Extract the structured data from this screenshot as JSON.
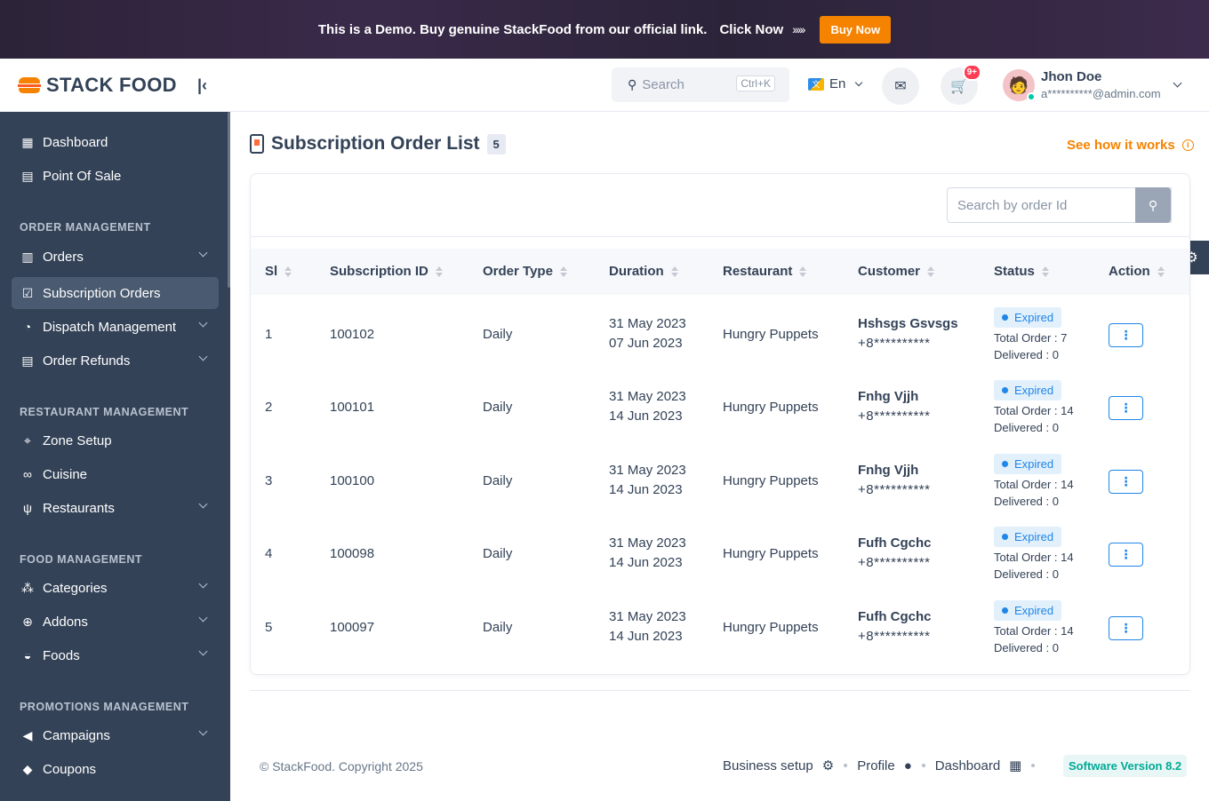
{
  "banner": {
    "text": "This is a Demo. Buy genuine StackFood from our official link.",
    "click_text": "Click Now",
    "arrows": "›››››",
    "buy_button": "Buy Now"
  },
  "brand": {
    "name": "STACK FOOD"
  },
  "sidebar": {
    "items": [
      {
        "label": "Dashboard",
        "icon": "dashboard-icon"
      },
      {
        "label": "Point Of Sale",
        "icon": "pos-icon"
      }
    ],
    "sections": {
      "order": "ORDER MANAGEMENT",
      "restaurant": "RESTAURANT MANAGEMENT",
      "food": "FOOD MANAGEMENT",
      "promotions": "PROMOTIONS MANAGEMENT"
    },
    "order_items": [
      {
        "label": "Orders"
      },
      {
        "label": "Subscription Orders"
      },
      {
        "label": "Dispatch Management"
      },
      {
        "label": "Order Refunds"
      }
    ],
    "restaurant_items": [
      {
        "label": "Zone Setup"
      },
      {
        "label": "Cuisine"
      },
      {
        "label": "Restaurants"
      }
    ],
    "food_items": [
      {
        "label": "Categories"
      },
      {
        "label": "Addons"
      },
      {
        "label": "Foods"
      }
    ],
    "promotion_items": [
      {
        "label": "Campaigns"
      },
      {
        "label": "Coupons"
      }
    ]
  },
  "header": {
    "search_placeholder": "Search",
    "search_shortcut": "Ctrl+K",
    "language": "En",
    "cart_badge": "9+",
    "user_name": "Jhon Doe",
    "user_email": "a**********@admin.com"
  },
  "page": {
    "title": "Subscription Order List",
    "count": "5",
    "how_link": "See how it works",
    "search_placeholder": "Search by order Id"
  },
  "table": {
    "headers": [
      "Sl",
      "Subscription ID",
      "Order Type",
      "Duration",
      "Restaurant",
      "Customer",
      "Status",
      "Action"
    ],
    "rows": [
      {
        "sl": "1",
        "id": "100102",
        "type": "Daily",
        "start": "31 May 2023",
        "end": "07 Jun 2023",
        "restaurant": "Hungry Puppets",
        "customer": "Hshsgs Gsvsgs",
        "phone": "+8**********",
        "status": "Expired",
        "total": "Total Order : 7",
        "delivered": "Delivered : 0"
      },
      {
        "sl": "2",
        "id": "100101",
        "type": "Daily",
        "start": "31 May 2023",
        "end": "14 Jun 2023",
        "restaurant": "Hungry Puppets",
        "customer": "Fnhg Vjjh",
        "phone": "+8**********",
        "status": "Expired",
        "total": "Total Order : 14",
        "delivered": "Delivered : 0"
      },
      {
        "sl": "3",
        "id": "100100",
        "type": "Daily",
        "start": "31 May 2023",
        "end": "14 Jun 2023",
        "restaurant": "Hungry Puppets",
        "customer": "Fnhg Vjjh",
        "phone": "+8**********",
        "status": "Expired",
        "total": "Total Order : 14",
        "delivered": "Delivered : 0"
      },
      {
        "sl": "4",
        "id": "100098",
        "type": "Daily",
        "start": "31 May 2023",
        "end": "14 Jun 2023",
        "restaurant": "Hungry Puppets",
        "customer": "Fufh Cgchc",
        "phone": "+8**********",
        "status": "Expired",
        "total": "Total Order : 14",
        "delivered": "Delivered : 0"
      },
      {
        "sl": "5",
        "id": "100097",
        "type": "Daily",
        "start": "31 May 2023",
        "end": "14 Jun 2023",
        "restaurant": "Hungry Puppets",
        "customer": "Fufh Cgchc",
        "phone": "+8**********",
        "status": "Expired",
        "total": "Total Order : 14",
        "delivered": "Delivered : 0"
      }
    ]
  },
  "footer": {
    "copyright": "© StackFood. Copyright 2025",
    "links": [
      "Business setup",
      "Profile",
      "Dashboard"
    ],
    "version": "Software Version 8.2"
  },
  "colors": {
    "sidebar": "#334257",
    "accent": "#f58300",
    "status_blue": "#2086e8",
    "version_green": "#00aa96"
  }
}
